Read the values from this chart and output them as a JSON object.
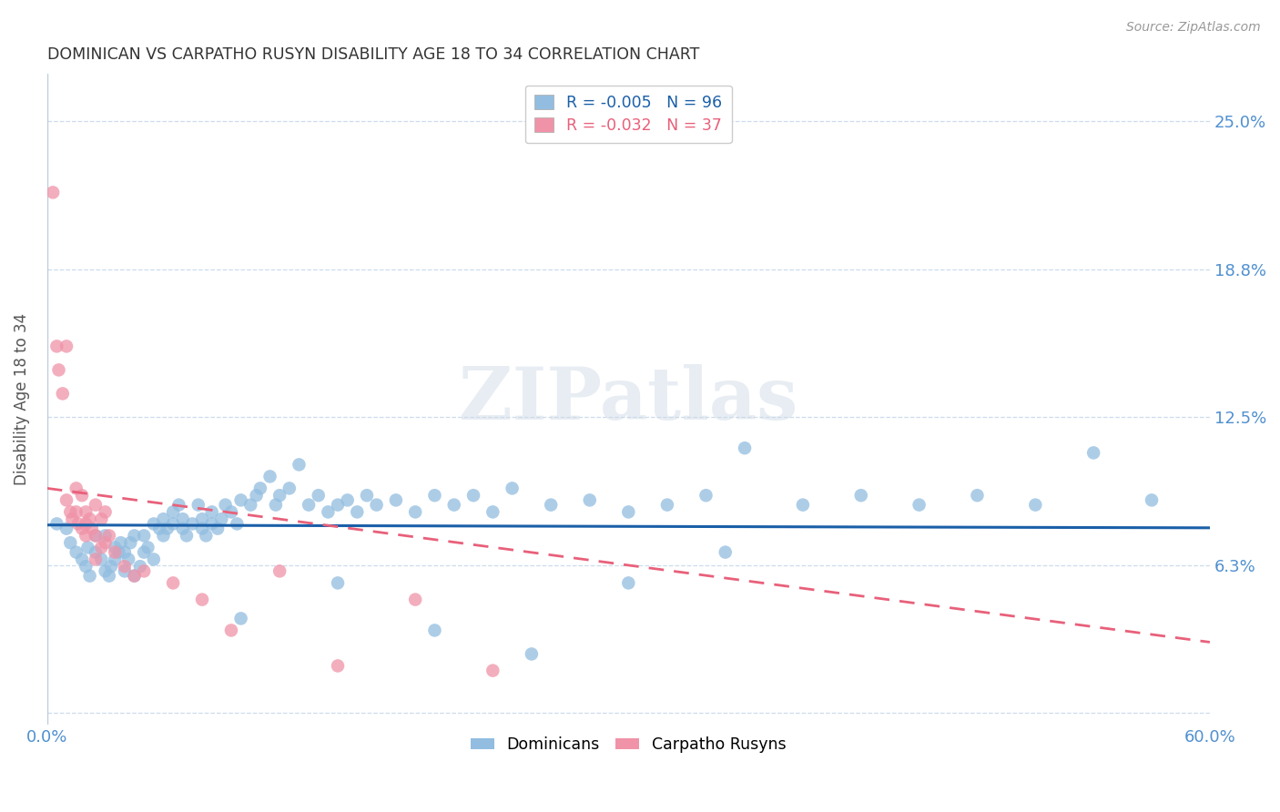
{
  "title": "DOMINICAN VS CARPATHO RUSYN DISABILITY AGE 18 TO 34 CORRELATION CHART",
  "source": "Source: ZipAtlas.com",
  "ylabel": "Disability Age 18 to 34",
  "xlim": [
    0.0,
    0.6
  ],
  "ylim": [
    -0.005,
    0.27
  ],
  "yticks": [
    0.0,
    0.0625,
    0.125,
    0.1875,
    0.25
  ],
  "ytick_labels": [
    "",
    "6.3%",
    "12.5%",
    "18.8%",
    "25.0%"
  ],
  "xticks": [
    0.0,
    0.1,
    0.2,
    0.3,
    0.4,
    0.5,
    0.6
  ],
  "xtick_labels": [
    "0.0%",
    "",
    "",
    "",
    "",
    "",
    "60.0%"
  ],
  "watermark": "ZIPatlas",
  "dominican_color": "#92bde0",
  "carpatho_color": "#f093a8",
  "trend_dominican_color": "#1a5fa8",
  "trend_carpatho_color": "#e8607a",
  "grid_color": "#c0d4e8",
  "tick_color": "#5090d0",
  "title_color": "#333333",
  "background_color": "#ffffff",
  "dominican_x": [
    0.005,
    0.01,
    0.012,
    0.015,
    0.018,
    0.02,
    0.021,
    0.022,
    0.025,
    0.025,
    0.028,
    0.03,
    0.03,
    0.032,
    0.033,
    0.035,
    0.035,
    0.037,
    0.038,
    0.04,
    0.04,
    0.042,
    0.043,
    0.045,
    0.045,
    0.048,
    0.05,
    0.05,
    0.052,
    0.055,
    0.055,
    0.058,
    0.06,
    0.06,
    0.062,
    0.065,
    0.065,
    0.068,
    0.07,
    0.07,
    0.072,
    0.075,
    0.078,
    0.08,
    0.08,
    0.082,
    0.085,
    0.085,
    0.088,
    0.09,
    0.092,
    0.095,
    0.098,
    0.1,
    0.105,
    0.108,
    0.11,
    0.115,
    0.118,
    0.12,
    0.125,
    0.13,
    0.135,
    0.14,
    0.145,
    0.15,
    0.155,
    0.16,
    0.165,
    0.17,
    0.18,
    0.19,
    0.2,
    0.21,
    0.22,
    0.23,
    0.24,
    0.26,
    0.28,
    0.3,
    0.32,
    0.34,
    0.36,
    0.39,
    0.42,
    0.45,
    0.48,
    0.51,
    0.54,
    0.57,
    0.1,
    0.15,
    0.2,
    0.25,
    0.3,
    0.35
  ],
  "dominican_y": [
    0.08,
    0.078,
    0.072,
    0.068,
    0.065,
    0.062,
    0.07,
    0.058,
    0.075,
    0.068,
    0.065,
    0.06,
    0.075,
    0.058,
    0.062,
    0.065,
    0.07,
    0.068,
    0.072,
    0.06,
    0.068,
    0.065,
    0.072,
    0.058,
    0.075,
    0.062,
    0.068,
    0.075,
    0.07,
    0.08,
    0.065,
    0.078,
    0.082,
    0.075,
    0.078,
    0.085,
    0.08,
    0.088,
    0.078,
    0.082,
    0.075,
    0.08,
    0.088,
    0.082,
    0.078,
    0.075,
    0.08,
    0.085,
    0.078,
    0.082,
    0.088,
    0.085,
    0.08,
    0.09,
    0.088,
    0.092,
    0.095,
    0.1,
    0.088,
    0.092,
    0.095,
    0.105,
    0.088,
    0.092,
    0.085,
    0.088,
    0.09,
    0.085,
    0.092,
    0.088,
    0.09,
    0.085,
    0.092,
    0.088,
    0.092,
    0.085,
    0.095,
    0.088,
    0.09,
    0.085,
    0.088,
    0.092,
    0.112,
    0.088,
    0.092,
    0.088,
    0.092,
    0.088,
    0.11,
    0.09,
    0.04,
    0.055,
    0.035,
    0.025,
    0.055,
    0.068
  ],
  "carpatho_x": [
    0.003,
    0.005,
    0.006,
    0.008,
    0.01,
    0.01,
    0.012,
    0.013,
    0.015,
    0.015,
    0.016,
    0.018,
    0.018,
    0.02,
    0.02,
    0.02,
    0.022,
    0.023,
    0.025,
    0.025,
    0.025,
    0.028,
    0.028,
    0.03,
    0.03,
    0.032,
    0.035,
    0.04,
    0.045,
    0.05,
    0.065,
    0.08,
    0.095,
    0.12,
    0.15,
    0.19,
    0.23
  ],
  "carpatho_y": [
    0.22,
    0.155,
    0.145,
    0.135,
    0.155,
    0.09,
    0.085,
    0.082,
    0.095,
    0.085,
    0.08,
    0.092,
    0.078,
    0.085,
    0.08,
    0.075,
    0.082,
    0.078,
    0.088,
    0.075,
    0.065,
    0.082,
    0.07,
    0.085,
    0.072,
    0.075,
    0.068,
    0.062,
    0.058,
    0.06,
    0.055,
    0.048,
    0.035,
    0.06,
    0.02,
    0.048,
    0.018
  ],
  "trend_dom_x0": 0.0,
  "trend_dom_x1": 0.6,
  "trend_dom_y0": 0.0795,
  "trend_dom_y1": 0.0783,
  "trend_car_x0": 0.0,
  "trend_car_x1": 0.6,
  "trend_car_y0": 0.095,
  "trend_car_y1": 0.03
}
